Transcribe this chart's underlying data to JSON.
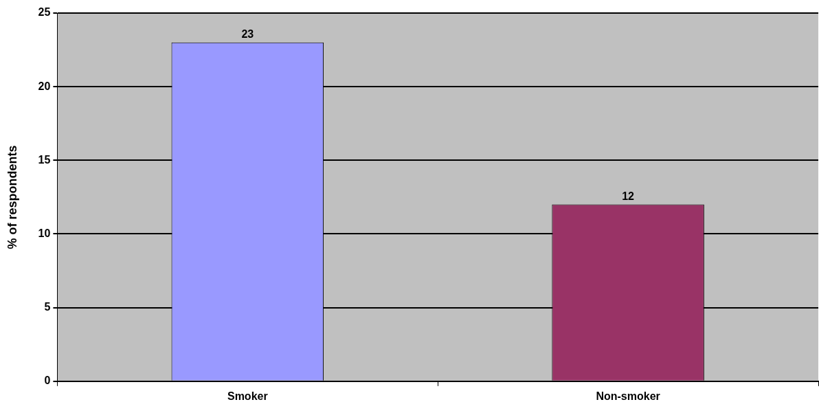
{
  "chart_data": {
    "type": "bar",
    "ylabel": "% of respondents",
    "categories": [
      "Smoker",
      "Non-smoker"
    ],
    "values": [
      23,
      12
    ],
    "colors": [
      "#9999ff",
      "#993366"
    ],
    "ylim": [
      0,
      25
    ],
    "yticks": [
      0,
      5,
      10,
      15,
      20,
      25
    ],
    "grid": "y",
    "legend": false,
    "data_labels": true
  }
}
